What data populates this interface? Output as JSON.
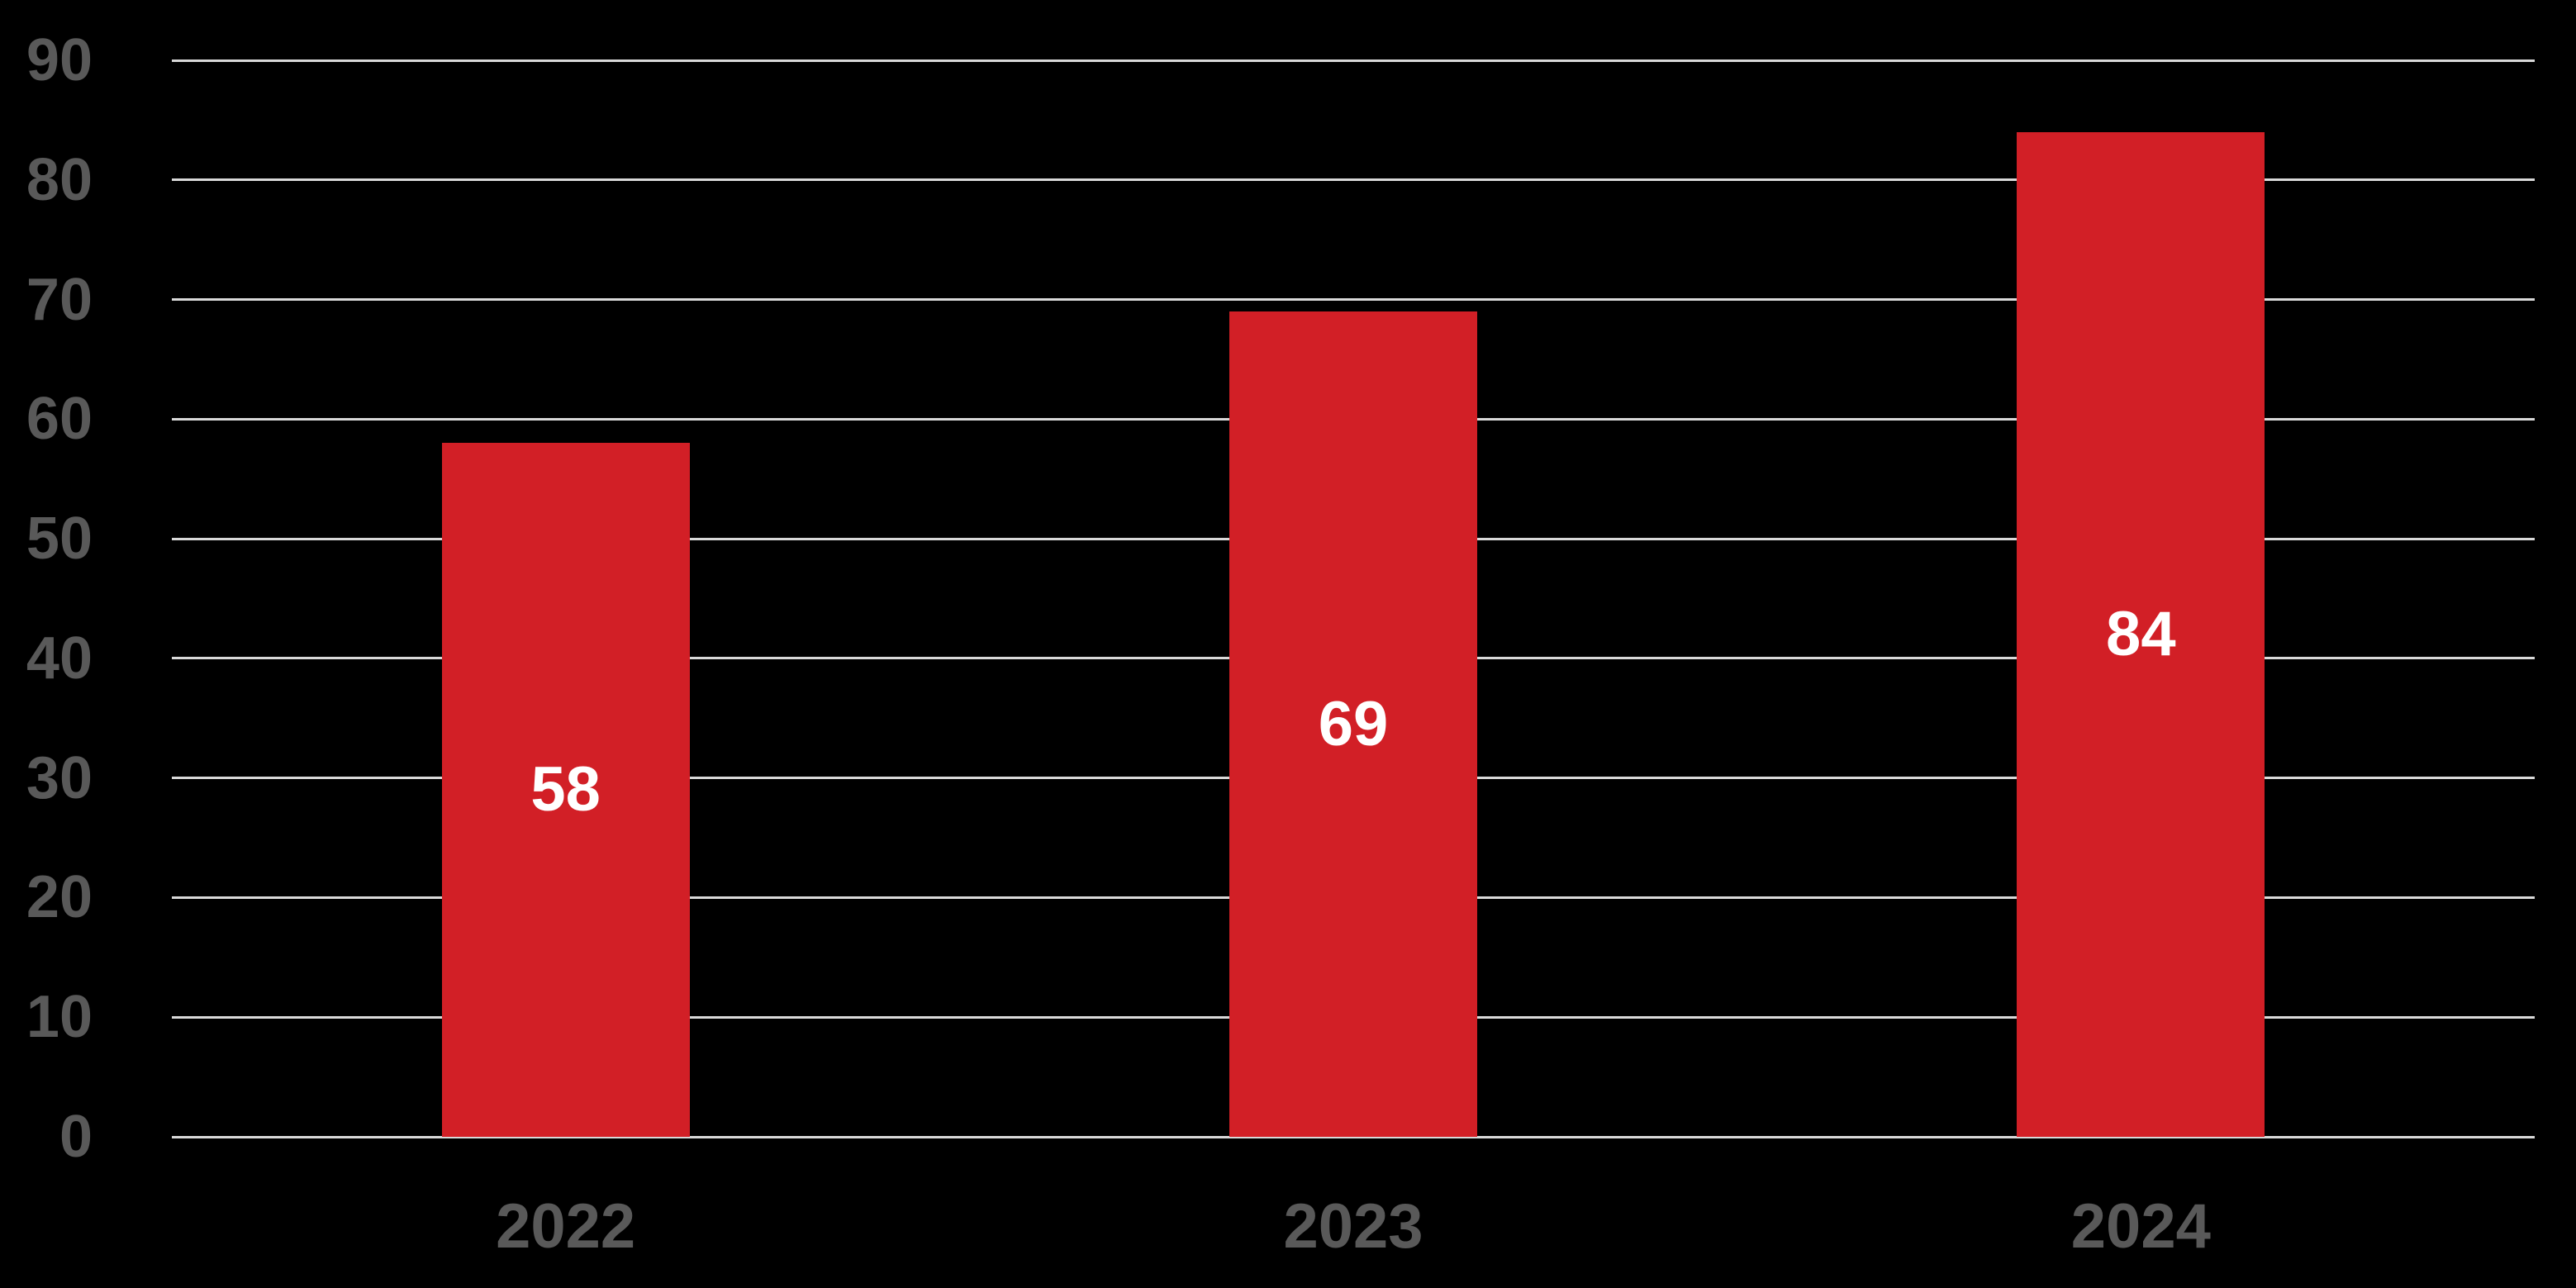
{
  "chart_data": {
    "type": "bar",
    "categories": [
      "2022",
      "2023",
      "2024"
    ],
    "values": [
      58,
      69,
      84
    ],
    "data_labels": [
      "58",
      "69",
      "84"
    ],
    "title": "",
    "xlabel": "",
    "ylabel": "",
    "ylim": [
      0,
      90
    ],
    "yticks": [
      "0",
      "10",
      "20",
      "30",
      "40",
      "50",
      "60",
      "70",
      "80",
      "90"
    ],
    "ytick_interval": 10,
    "grid": true,
    "legend_position": "none",
    "colors": {
      "background": "#000000",
      "bar_fill": "#D21F26",
      "gridline": "#D9D9D9",
      "axis_line": "#D9D9D9",
      "tick_label": "#595959",
      "data_label": "#FFFFFF"
    }
  }
}
